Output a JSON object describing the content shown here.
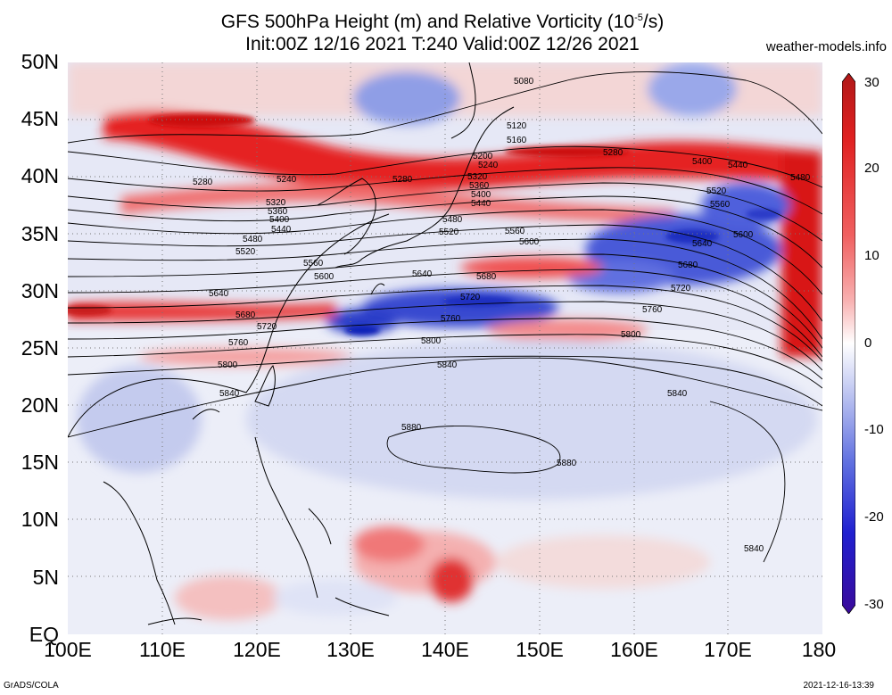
{
  "title_line1": "GFS 500hPa Height (m) and Relative Vorticity (10",
  "title_exp": "-5",
  "title_line1_end": "/s)",
  "title_line2": "Init:00Z 12/16 2021 T:240 Valid:00Z 12/26 2021",
  "site": "weather-models.info",
  "footer_left": "GrADS/COLA",
  "footer_right": "2021-12-16-13:39",
  "lat_labels": [
    "50N",
    "45N",
    "40N",
    "35N",
    "30N",
    "25N",
    "20N",
    "15N",
    "10N",
    "5N",
    "EQ"
  ],
  "lon_labels": [
    "100E",
    "110E",
    "120E",
    "130E",
    "140E",
    "150E",
    "160E",
    "170E",
    "180"
  ],
  "colorbar": {
    "ticks": [
      "30",
      "20",
      "10",
      "0",
      "-10",
      "-20",
      "-30"
    ],
    "colors": [
      "#b01818",
      "#e02020",
      "#f06060",
      "#f8b0b0",
      "#ffffff",
      "#b8c0f0",
      "#6070e0",
      "#2020d0",
      "#3a0a9a"
    ]
  },
  "contour_labels": [
    "5080",
    "5120",
    "5160",
    "5200",
    "5240",
    "5280",
    "5320",
    "5360",
    "5400",
    "5440",
    "5480",
    "5520",
    "5560",
    "5600",
    "5640",
    "5680",
    "5720",
    "5760",
    "5800",
    "5840",
    "5880"
  ]
}
